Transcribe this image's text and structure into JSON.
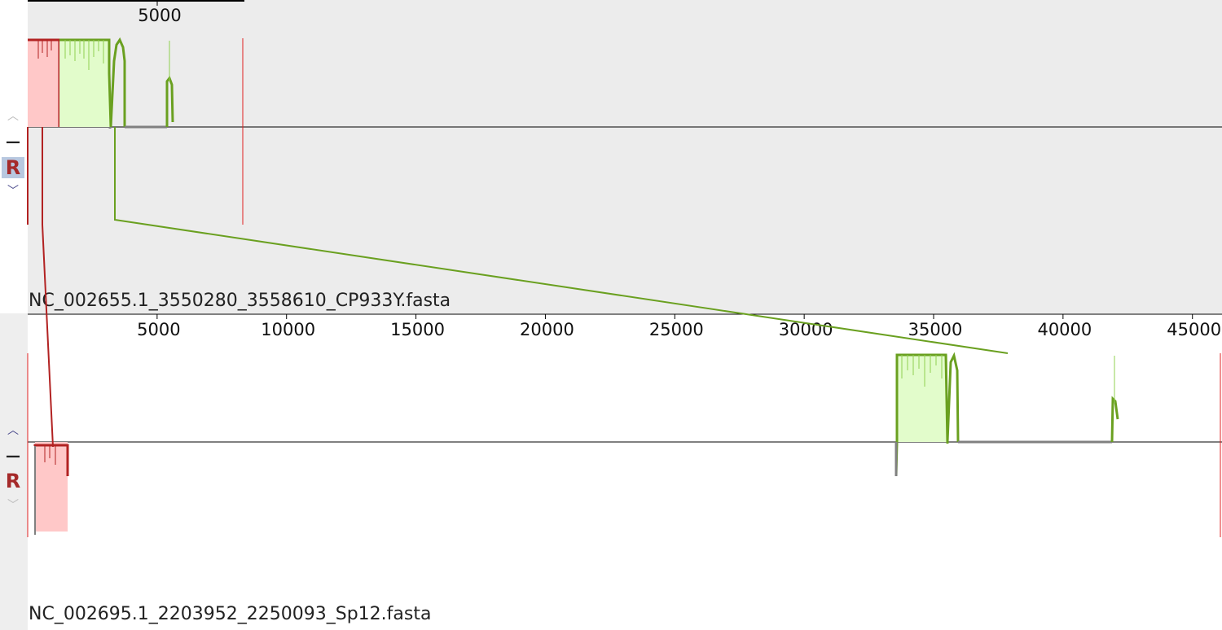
{
  "top_panel": {
    "sequence_label": "NC_002655.1_3550280_3558610_CP933Y.fasta",
    "ruler_ticks": [
      5000
    ],
    "controls": {
      "up": "︿",
      "minus": "—",
      "reverse": "R",
      "down": "﹀"
    }
  },
  "bottom_panel": {
    "sequence_label": "NC_002695.1_2203952_2250093_Sp12.fasta",
    "ruler_ticks": [
      5000,
      10000,
      15000,
      20000,
      25000,
      30000,
      35000,
      40000,
      45000
    ],
    "controls": {
      "up": "︿",
      "minus": "—",
      "reverse": "R",
      "down": "﹀"
    }
  },
  "colors": {
    "lcb_red": "#b22222",
    "lcb_red_fill": "#ffc8c8",
    "lcb_green": "#6aa020",
    "lcb_green_fill": "#e2fccb",
    "gap_gray": "#808080",
    "sequence_end_marker": "#e02020"
  }
}
